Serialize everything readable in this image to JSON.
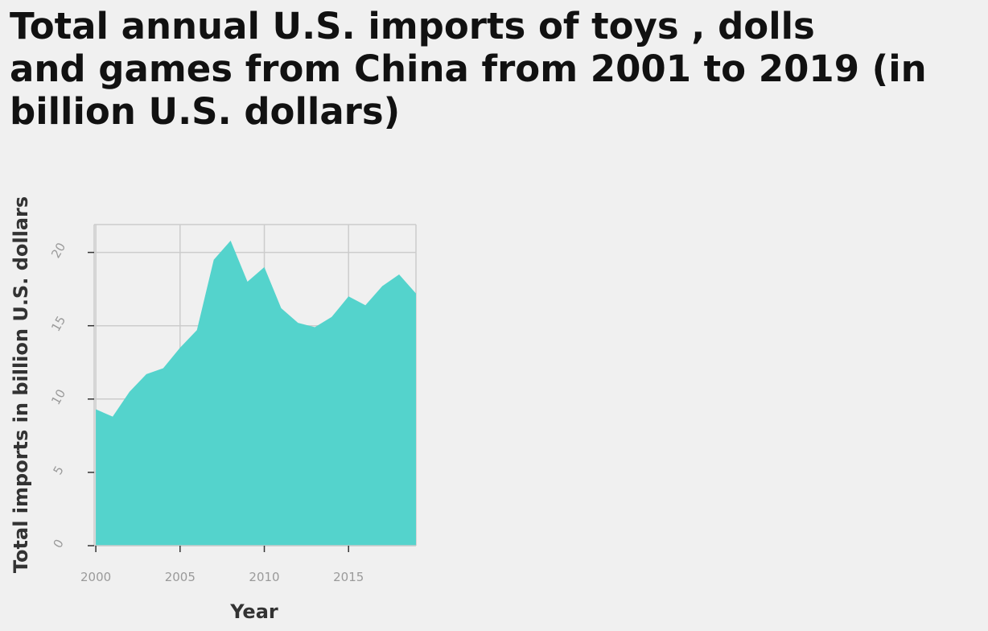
{
  "title_lines": [
    "Total annual U.S. imports of toys , dolls",
    "and games from China from 2001 to 2019 (in",
    "billion U.S. dollars)"
  ],
  "chart_data": {
    "type": "area",
    "title": "Total annual U.S. imports of toys , dolls and games from China from 2001 to 2019 (in billion U.S. dollars)",
    "xlabel": "Year",
    "ylabel": "Total imports in billion U.S. dollars",
    "x": [
      2000,
      2001,
      2002,
      2003,
      2004,
      2005,
      2006,
      2007,
      2008,
      2009,
      2010,
      2011,
      2012,
      2013,
      2014,
      2015,
      2016,
      2017,
      2018,
      2019
    ],
    "values": [
      9.3,
      8.8,
      10.5,
      11.7,
      12.1,
      13.5,
      14.7,
      19.5,
      20.8,
      18.0,
      19.0,
      16.2,
      15.2,
      14.9,
      15.6,
      17.0,
      16.4,
      17.7,
      18.5,
      17.2
    ],
    "xlim": [
      1999.9,
      2019
    ],
    "ylim": [
      0,
      21.9
    ],
    "xticks": [
      2000,
      2005,
      2010,
      2015
    ],
    "yticks": [
      0,
      5,
      10,
      15,
      20
    ],
    "grid": true,
    "colors": {
      "fill": "#54d3cc",
      "grid": "#cccccc",
      "background": "#f0f0f0"
    }
  }
}
